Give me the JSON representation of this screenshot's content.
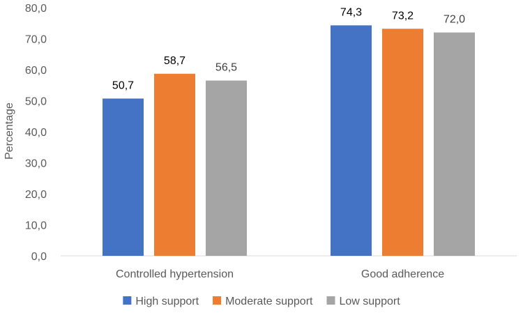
{
  "chart_data": {
    "type": "bar",
    "title": "",
    "xlabel": "",
    "ylabel": "Percentage",
    "ylim": [
      0,
      80
    ],
    "y_ticks": [
      "0,0",
      "10,0",
      "20,0",
      "30,0",
      "40,0",
      "50,0",
      "60,0",
      "70,0",
      "80,0"
    ],
    "y_tick_values": [
      0,
      10,
      20,
      30,
      40,
      50,
      60,
      70,
      80
    ],
    "categories": [
      "Controlled hypertension",
      "Good adherence"
    ],
    "series": [
      {
        "name": "High support",
        "color": "#4472C4",
        "values": [
          50.7,
          74.3
        ],
        "labels": [
          "50,7",
          "74,3"
        ]
      },
      {
        "name": "Moderate support",
        "color": "#ED7D31",
        "values": [
          58.7,
          73.2
        ],
        "labels": [
          "58,7",
          "73,2"
        ]
      },
      {
        "name": "Low support",
        "color": "#A5A5A5",
        "values": [
          56.5,
          72.0
        ],
        "labels": [
          "56,5",
          "72,0"
        ]
      }
    ],
    "grid": false,
    "legend": "bottom-center",
    "data_label_colors": [
      "#000000",
      "#000000",
      "#404040"
    ]
  }
}
